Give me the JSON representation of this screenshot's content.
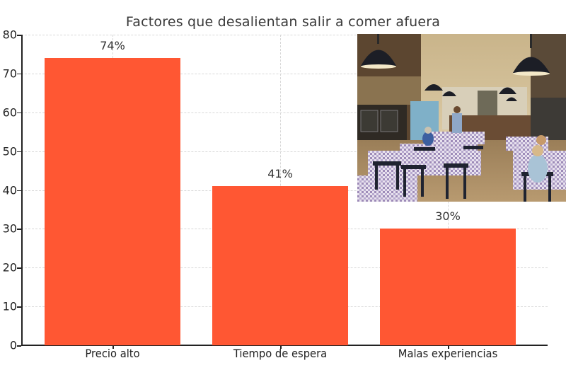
{
  "chart_data": {
    "type": "bar",
    "title": "Factores que desalientan salir a comer afuera",
    "xlabel": "",
    "ylabel": "",
    "categories": [
      "Precio alto",
      "Tiempo de espera",
      "Malas experiencias"
    ],
    "values": [
      74,
      41,
      30
    ],
    "data_labels": [
      "74%",
      "41%",
      "30%"
    ],
    "ylim": [
      0,
      80
    ],
    "yticks": [
      0,
      10,
      20,
      30,
      40,
      50,
      60,
      70,
      80
    ],
    "grid": true,
    "legend": null,
    "bar_color": "#ff5733"
  },
  "image": {
    "description": "restaurant-interior-photo"
  }
}
